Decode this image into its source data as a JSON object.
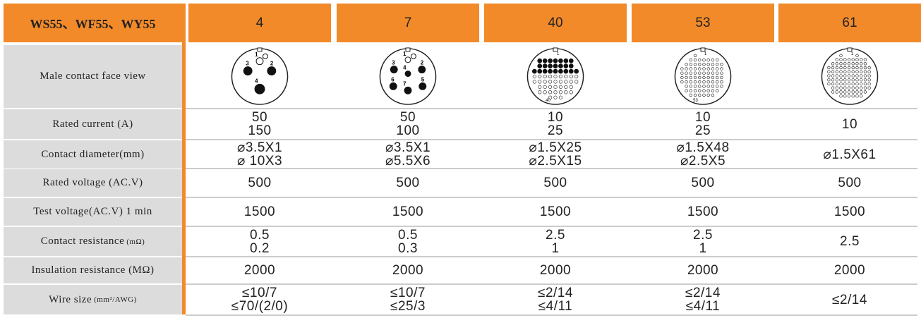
{
  "header": {
    "title": "WS55、WF55、WY55",
    "pin_counts": [
      "4",
      "7",
      "40",
      "53",
      "61"
    ]
  },
  "face_view": {
    "label": "Male contact face view",
    "pin_labels": [
      [
        "1",
        "2",
        "3",
        "4"
      ],
      [
        "1",
        "2",
        "3",
        "4",
        "5",
        "6",
        "7"
      ],
      [
        "1",
        "40"
      ],
      [
        "1",
        "53"
      ],
      [
        "1"
      ]
    ]
  },
  "rows": [
    {
      "label": "Rated current (A)",
      "values": [
        [
          "50",
          "150"
        ],
        [
          "50",
          "100"
        ],
        [
          "10",
          "25"
        ],
        [
          "10",
          "25"
        ],
        [
          "10"
        ]
      ]
    },
    {
      "label": "Contact diameter(mm)",
      "values": [
        [
          "⌀3.5X1",
          "⌀ 10X3"
        ],
        [
          "⌀3.5X1",
          "⌀5.5X6"
        ],
        [
          "⌀1.5X25",
          "⌀2.5X15"
        ],
        [
          "⌀1.5X48",
          "⌀2.5X5"
        ],
        [
          "⌀1.5X61"
        ]
      ]
    },
    {
      "label": "Rated voltage (AC.V)",
      "values": [
        [
          "500"
        ],
        [
          "500"
        ],
        [
          "500"
        ],
        [
          "500"
        ],
        [
          "500"
        ]
      ]
    },
    {
      "label": "Test voltage(AC.V) 1 min",
      "values": [
        [
          "1500"
        ],
        [
          "1500"
        ],
        [
          "1500"
        ],
        [
          "1500"
        ],
        [
          "1500"
        ]
      ]
    },
    {
      "label": "Contact resistance",
      "unit": "(mΩ)",
      "values": [
        [
          "0.5",
          "0.2"
        ],
        [
          "0.5",
          "0.3"
        ],
        [
          "2.5",
          "1"
        ],
        [
          "2.5",
          "1"
        ],
        [
          "2.5"
        ]
      ]
    },
    {
      "label": "Insulation resistance (MΩ)",
      "values": [
        [
          "2000"
        ],
        [
          "2000"
        ],
        [
          "2000"
        ],
        [
          "2000"
        ],
        [
          "2000"
        ]
      ]
    },
    {
      "label": "Wire size",
      "unit": "(mm²/AWG)",
      "values": [
        [
          "≤10/7",
          "≤70/(2/0)"
        ],
        [
          "≤10/7",
          "≤25/3"
        ],
        [
          "≤2/14",
          "≤4/11"
        ],
        [
          "≤2/14",
          "≤4/11"
        ],
        [
          "≤2/14"
        ]
      ]
    }
  ]
}
